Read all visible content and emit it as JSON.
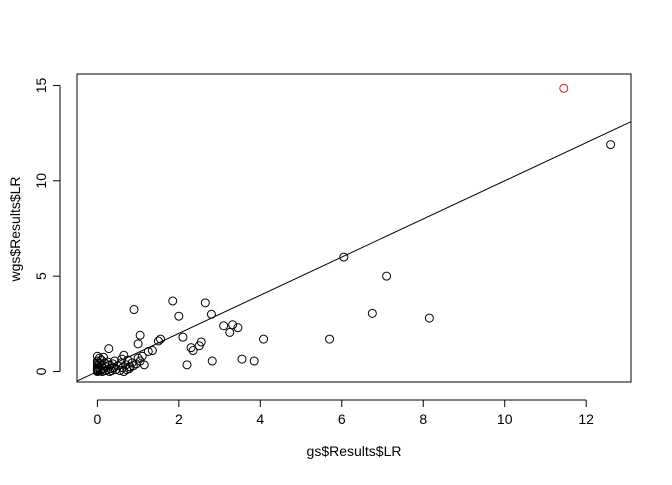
{
  "chart_data": {
    "type": "scatter",
    "title": "",
    "xlabel": "gs$Results$LR",
    "ylabel": "wgs$Results$LR",
    "xlim": [
      -0.5,
      13.1
    ],
    "ylim": [
      -0.55,
      15.6
    ],
    "xticks": [
      0,
      2,
      4,
      6,
      8,
      10,
      12
    ],
    "yticks": [
      0,
      5,
      10,
      15
    ],
    "grid": false,
    "legend": "none",
    "point_color": "#000000",
    "highlight_color": "#e8141c",
    "reference_line": {
      "slope": 1,
      "intercept": 0
    },
    "points": [
      {
        "x": 0.0,
        "y": 0.0
      },
      {
        "x": 0.0,
        "y": 0.05
      },
      {
        "x": 0.0,
        "y": 0.1
      },
      {
        "x": 0.0,
        "y": 0.15
      },
      {
        "x": 0.0,
        "y": 0.25
      },
      {
        "x": 0.0,
        "y": 0.35
      },
      {
        "x": 0.0,
        "y": 0.45
      },
      {
        "x": 0.0,
        "y": 0.55
      },
      {
        "x": 0.0,
        "y": 0.8
      },
      {
        "x": 0.02,
        "y": 0.02
      },
      {
        "x": 0.03,
        "y": 0.2
      },
      {
        "x": 0.05,
        "y": 0.4
      },
      {
        "x": 0.05,
        "y": 0.7
      },
      {
        "x": 0.08,
        "y": 0.05
      },
      {
        "x": 0.1,
        "y": 0.3
      },
      {
        "x": 0.1,
        "y": 0.6
      },
      {
        "x": 0.12,
        "y": 0.0
      },
      {
        "x": 0.15,
        "y": 0.15
      },
      {
        "x": 0.15,
        "y": 0.75
      },
      {
        "x": 0.18,
        "y": 0.45
      },
      {
        "x": 0.2,
        "y": 0.05
      },
      {
        "x": 0.22,
        "y": 0.25
      },
      {
        "x": 0.25,
        "y": 0.1
      },
      {
        "x": 0.25,
        "y": 0.5
      },
      {
        "x": 0.28,
        "y": 1.2
      },
      {
        "x": 0.3,
        "y": 0.0
      },
      {
        "x": 0.3,
        "y": 0.35
      },
      {
        "x": 0.32,
        "y": 0.15
      },
      {
        "x": 0.35,
        "y": 0.05
      },
      {
        "x": 0.38,
        "y": 0.4
      },
      {
        "x": 0.4,
        "y": 0.2
      },
      {
        "x": 0.42,
        "y": 0.55
      },
      {
        "x": 0.45,
        "y": 0.1
      },
      {
        "x": 0.5,
        "y": 0.3
      },
      {
        "x": 0.55,
        "y": 0.05
      },
      {
        "x": 0.58,
        "y": 0.45
      },
      {
        "x": 0.6,
        "y": 0.65
      },
      {
        "x": 0.62,
        "y": 0.2
      },
      {
        "x": 0.65,
        "y": 0.0
      },
      {
        "x": 0.65,
        "y": 0.85
      },
      {
        "x": 0.7,
        "y": 0.35
      },
      {
        "x": 0.72,
        "y": 0.1
      },
      {
        "x": 0.75,
        "y": 0.6
      },
      {
        "x": 0.78,
        "y": 0.15
      },
      {
        "x": 0.8,
        "y": 0.25
      },
      {
        "x": 0.85,
        "y": 0.45
      },
      {
        "x": 0.88,
        "y": 0.3
      },
      {
        "x": 0.9,
        "y": 3.25
      },
      {
        "x": 0.95,
        "y": 0.4
      },
      {
        "x": 1.0,
        "y": 0.7
      },
      {
        "x": 1.0,
        "y": 1.45
      },
      {
        "x": 1.05,
        "y": 1.9
      },
      {
        "x": 1.05,
        "y": 0.55
      },
      {
        "x": 1.1,
        "y": 0.8
      },
      {
        "x": 1.15,
        "y": 0.35
      },
      {
        "x": 1.25,
        "y": 1.05
      },
      {
        "x": 1.35,
        "y": 1.1
      },
      {
        "x": 1.5,
        "y": 1.6
      },
      {
        "x": 1.55,
        "y": 1.7
      },
      {
        "x": 1.85,
        "y": 3.7
      },
      {
        "x": 2.0,
        "y": 2.9
      },
      {
        "x": 2.1,
        "y": 1.8
      },
      {
        "x": 2.2,
        "y": 0.35
      },
      {
        "x": 2.3,
        "y": 1.25
      },
      {
        "x": 2.35,
        "y": 1.1
      },
      {
        "x": 2.5,
        "y": 1.35
      },
      {
        "x": 2.55,
        "y": 1.55
      },
      {
        "x": 2.65,
        "y": 3.6
      },
      {
        "x": 2.8,
        "y": 3.0
      },
      {
        "x": 2.82,
        "y": 0.55
      },
      {
        "x": 3.1,
        "y": 2.4
      },
      {
        "x": 3.25,
        "y": 2.05
      },
      {
        "x": 3.32,
        "y": 2.45
      },
      {
        "x": 3.45,
        "y": 2.3
      },
      {
        "x": 3.55,
        "y": 0.65
      },
      {
        "x": 3.85,
        "y": 0.55
      },
      {
        "x": 4.08,
        "y": 1.7
      },
      {
        "x": 5.7,
        "y": 1.7
      },
      {
        "x": 6.05,
        "y": 6.0
      },
      {
        "x": 6.75,
        "y": 3.05
      },
      {
        "x": 7.1,
        "y": 5.0
      },
      {
        "x": 8.15,
        "y": 2.8
      },
      {
        "x": 12.6,
        "y": 11.9
      },
      {
        "x": 11.45,
        "y": 14.85,
        "highlight": true
      }
    ]
  }
}
